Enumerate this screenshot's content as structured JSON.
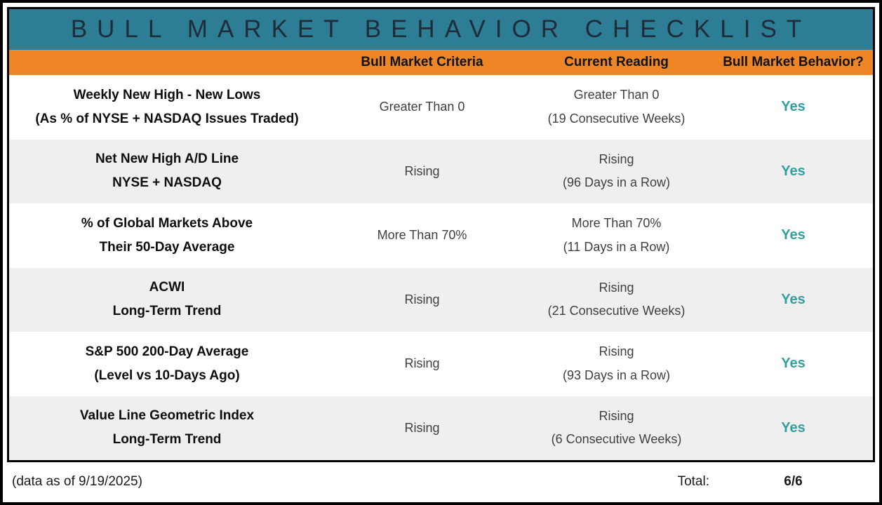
{
  "title": "BULL MARKET BEHAVIOR CHECKLIST",
  "columns": {
    "criteria": "Bull Market Criteria",
    "reading": "Current Reading",
    "behavior": "Bull Market Behavior?"
  },
  "rows": [
    {
      "name_line1": "Weekly New High - New Lows",
      "name_line2": "(As % of NYSE + NASDAQ Issues Traded)",
      "criteria": "Greater Than 0",
      "reading": "Greater Than 0",
      "reading_detail": "(19 Consecutive Weeks)",
      "behavior": "Yes"
    },
    {
      "name_line1": "Net New High A/D Line",
      "name_line2": "NYSE + NASDAQ",
      "criteria": "Rising",
      "reading": "Rising",
      "reading_detail": "(96 Days in a Row)",
      "behavior": "Yes"
    },
    {
      "name_line1": "% of Global Markets Above",
      "name_line2": "Their 50-Day Average",
      "criteria": "More Than 70%",
      "reading": "More Than 70%",
      "reading_detail": "(11 Days in a Row)",
      "behavior": "Yes"
    },
    {
      "name_line1": "ACWI",
      "name_line2": "Long-Term Trend",
      "criteria": "Rising",
      "reading": "Rising",
      "reading_detail": "(21 Consecutive Weeks)",
      "behavior": "Yes"
    },
    {
      "name_line1": "S&P 500 200-Day Average",
      "name_line2": "(Level vs 10-Days Ago)",
      "criteria": "Rising",
      "reading": "Rising",
      "reading_detail": "(93 Days in a Row)",
      "behavior": "Yes"
    },
    {
      "name_line1": "Value Line Geometric Index",
      "name_line2": "Long-Term Trend",
      "criteria": "Rising",
      "reading": "Rising",
      "reading_detail": "(6 Consecutive Weeks)",
      "behavior": "Yes"
    }
  ],
  "footer": {
    "data_as_of": "(data as of 9/19/2025)",
    "total_label": "Total:",
    "total_value": "6/6"
  },
  "colors": {
    "title_band": "#2d7e95",
    "title_text": "#1f2c3a",
    "header_band": "#ef8626",
    "alt_row": "#efefef",
    "body_text": "#3f3f3f",
    "yes_text": "#31a0a0"
  },
  "chart_data": {
    "type": "table",
    "title": "BULL MARKET BEHAVIOR CHECKLIST",
    "columns": [
      "Indicator",
      "Bull Market Criteria",
      "Current Reading",
      "Bull Market Behavior?"
    ],
    "rows": [
      [
        "Weekly New High - New Lows (As % of NYSE + NASDAQ Issues Traded)",
        "Greater Than 0",
        "Greater Than 0 (19 Consecutive Weeks)",
        "Yes"
      ],
      [
        "Net New High A/D Line NYSE + NASDAQ",
        "Rising",
        "Rising (96 Days in a Row)",
        "Yes"
      ],
      [
        "% of Global Markets Above Their 50-Day Average",
        "More Than 70%",
        "More Than 70% (11 Days in a Row)",
        "Yes"
      ],
      [
        "ACWI Long-Term Trend",
        "Rising",
        "Rising (21 Consecutive Weeks)",
        "Yes"
      ],
      [
        "S&P 500 200-Day Average (Level vs 10-Days Ago)",
        "Rising",
        "Rising (93 Days in a Row)",
        "Yes"
      ],
      [
        "Value Line Geometric Index Long-Term Trend",
        "Rising",
        "Rising (6 Consecutive Weeks)",
        "Yes"
      ]
    ],
    "annotations": [
      "(data as of 9/19/2025)",
      "Total: 6/6"
    ]
  }
}
